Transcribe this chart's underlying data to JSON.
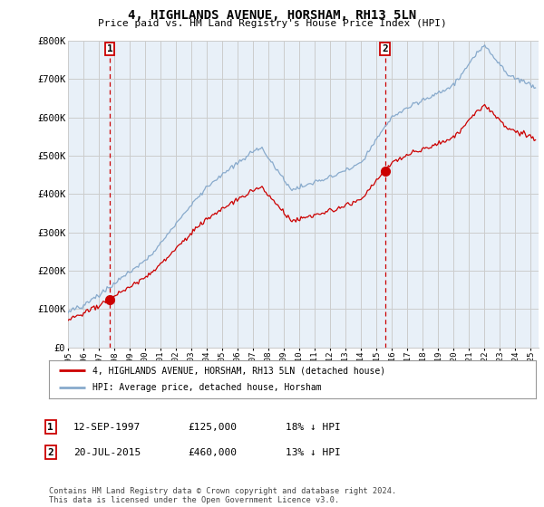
{
  "title": "4, HIGHLANDS AVENUE, HORSHAM, RH13 5LN",
  "subtitle": "Price paid vs. HM Land Registry's House Price Index (HPI)",
  "ylim": [
    0,
    800000
  ],
  "xlim_start": 1995.0,
  "xlim_end": 2025.5,
  "transaction1": {
    "date_num": 1997.7,
    "price": 125000,
    "label": "1",
    "date_str": "12-SEP-1997",
    "pct": "18% ↓ HPI"
  },
  "transaction2": {
    "date_num": 2015.55,
    "price": 460000,
    "label": "2",
    "date_str": "20-JUL-2015",
    "pct": "13% ↓ HPI"
  },
  "red_line_color": "#cc0000",
  "blue_line_color": "#88aacc",
  "vline_color": "#cc0000",
  "grid_color": "#cccccc",
  "bg_color": "#ffffff",
  "chart_bg": "#e8f0f8",
  "legend_label_red": "4, HIGHLANDS AVENUE, HORSHAM, RH13 5LN (detached house)",
  "legend_label_blue": "HPI: Average price, detached house, Horsham",
  "footnote": "Contains HM Land Registry data © Crown copyright and database right 2024.\nThis data is licensed under the Open Government Licence v3.0.",
  "table_rows": [
    {
      "num": "1",
      "date": "12-SEP-1997",
      "price": "£125,000",
      "pct": "18% ↓ HPI"
    },
    {
      "num": "2",
      "date": "20-JUL-2015",
      "price": "£460,000",
      "pct": "13% ↓ HPI"
    }
  ]
}
